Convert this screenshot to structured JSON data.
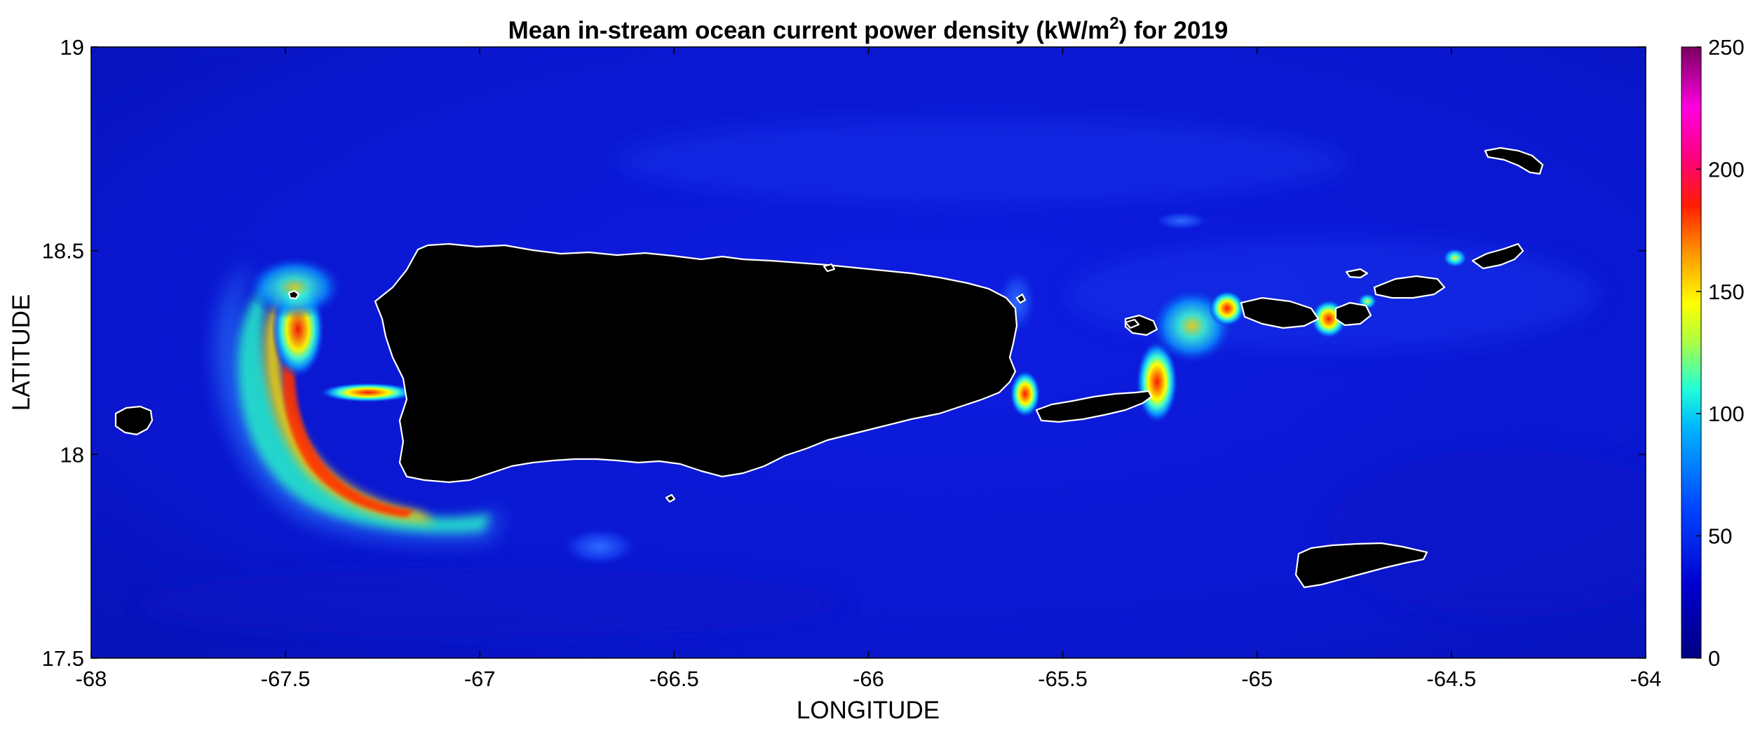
{
  "title": {
    "prefix": "Mean in-stream ocean current power density (kW/m",
    "superscript": "2",
    "suffix": ") for 2019"
  },
  "axes": {
    "xlabel": "LONGITUDE",
    "ylabel": "LATITUDE",
    "xlim": [
      -68,
      -64
    ],
    "ylim": [
      17.5,
      19
    ],
    "xticks": [
      -68,
      -67.5,
      -67,
      -66.5,
      -66,
      -65.5,
      -65,
      -64.5,
      -64
    ],
    "xtick_labels": [
      "-68",
      "-67.5",
      "-67",
      "-66.5",
      "-66",
      "-65.5",
      "-65",
      "-64.5",
      "-64"
    ],
    "yticks": [
      17.5,
      18,
      18.5,
      19
    ],
    "ytick_labels": [
      "17.5",
      "18",
      "18.5",
      "19"
    ]
  },
  "colorbar": {
    "range": [
      0,
      250
    ],
    "ticks": [
      0,
      50,
      100,
      150,
      200,
      250
    ],
    "tick_labels": [
      "0",
      "50",
      "100",
      "150",
      "200",
      "250"
    ],
    "colormap": "jet-like (dark navy → blue → cyan → yellow → red → magenta → purple)"
  },
  "colors": {
    "ocean_base": "#0a17d8",
    "land": "#000000",
    "coastline": "#ffffff"
  },
  "map": {
    "region": "Puerto Rico and the Virgin Islands",
    "background_level": 20,
    "hotspots": [
      {
        "lon": -67.48,
        "lat": 18.25,
        "level": 160
      },
      {
        "lon": -67.45,
        "lat": 17.9,
        "level": 170
      },
      {
        "lon": -67.3,
        "lat": 17.84,
        "level": 140
      },
      {
        "lon": -67.32,
        "lat": 18.16,
        "level": 170
      },
      {
        "lon": -65.6,
        "lat": 18.16,
        "level": 210
      },
      {
        "lon": -65.27,
        "lat": 18.15,
        "level": 190
      },
      {
        "lon": -65.07,
        "lat": 18.37,
        "level": 220
      },
      {
        "lon": -65.15,
        "lat": 18.34,
        "level": 150
      },
      {
        "lon": -64.82,
        "lat": 18.34,
        "level": 170
      },
      {
        "lon": -64.48,
        "lat": 18.48,
        "level": 120
      },
      {
        "lon": -66.7,
        "lat": 17.78,
        "level": 60
      }
    ]
  }
}
